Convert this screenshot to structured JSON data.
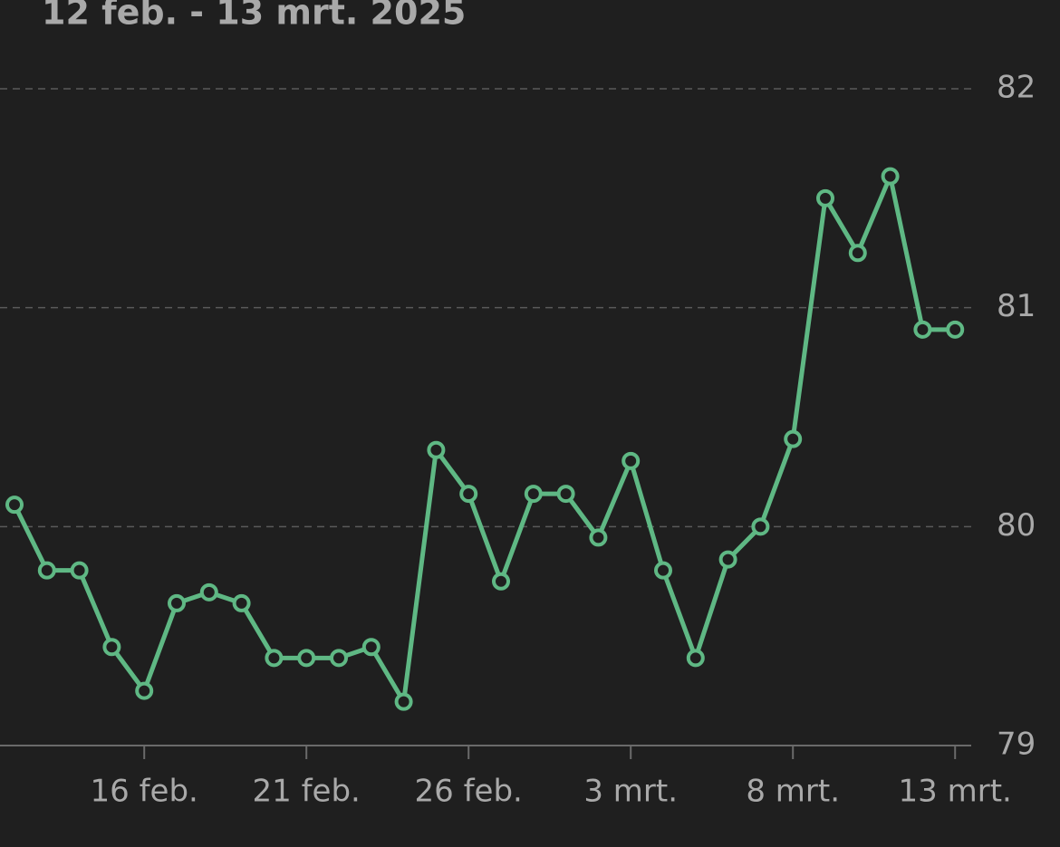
{
  "chart_data": {
    "type": "line",
    "title": "12 feb. - 13 mrt. 2025",
    "categories": [
      null,
      null,
      null,
      null,
      "16 feb.",
      null,
      null,
      null,
      null,
      "21 feb.",
      null,
      null,
      null,
      null,
      "26 feb.",
      null,
      null,
      null,
      null,
      "3 mrt.",
      null,
      null,
      null,
      null,
      "8 mrt.",
      null,
      null,
      null,
      null,
      "13 mrt."
    ],
    "series": [
      {
        "name": null,
        "color": "#5fb884",
        "values": [
          80.1,
          79.8,
          79.8,
          79.45,
          79.25,
          79.65,
          79.7,
          79.65,
          79.4,
          79.4,
          79.4,
          79.45,
          79.2,
          80.35,
          80.15,
          79.75,
          80.15,
          80.15,
          79.95,
          80.3,
          79.8,
          79.4,
          79.85,
          80.0,
          80.4,
          81.5,
          81.25,
          81.6,
          80.9,
          80.9
        ]
      }
    ],
    "ylim": [
      79,
      82
    ],
    "yticks": [
      79,
      80,
      81,
      82
    ],
    "grid": true
  }
}
